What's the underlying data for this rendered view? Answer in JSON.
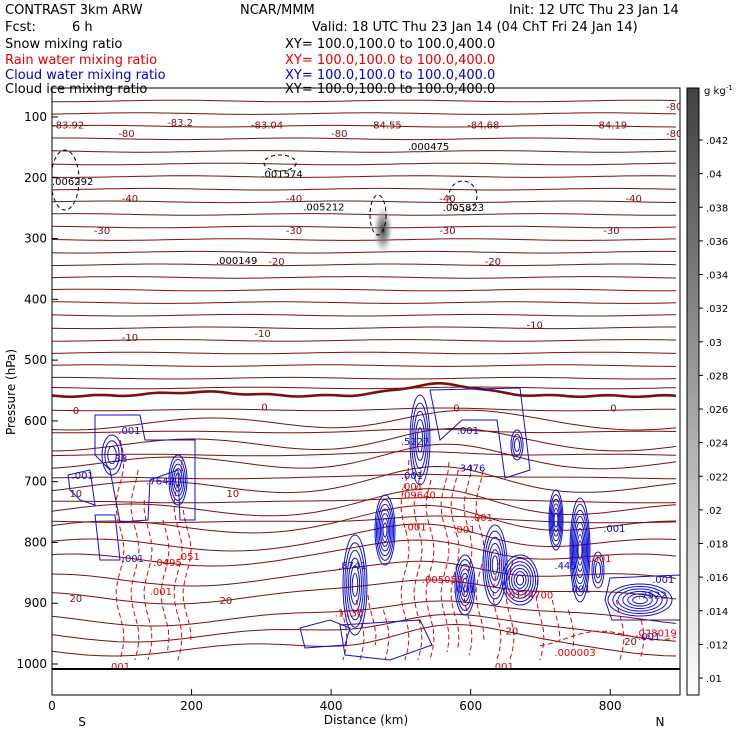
{
  "header": {
    "model": "CONTRAST  3km ARW",
    "org": "NCAR/MMM",
    "init": "Init: 12 UTC Thu 23 Jan 14",
    "fcst_label": "Fcst:",
    "fcst_value": "6 h",
    "valid": "Valid: 18 UTC Thu 23 Jan 14  (04 ChT Fri 24 Jan 14)"
  },
  "legend": [
    {
      "name": "Snow mixing ratio",
      "xy": "XY=  100.0,100.0 to 100.0,400.0",
      "color": "#000000"
    },
    {
      "name": "Rain water mixing ratio",
      "xy": "XY=  100.0,100.0 to 100.0,400.0",
      "color": "#e00000"
    },
    {
      "name": "Cloud water mixing ratio",
      "xy": "XY=  100.0,100.0 to 100.0,400.0",
      "color": "#0000cc"
    },
    {
      "name": "Cloud ice mixing ratio",
      "xy": "XY=  100.0,100.0 to 100.0,400.0",
      "color": "#000000"
    }
  ],
  "colors": {
    "temperature": "#7a1010",
    "rain": "#e00000",
    "cloud_water": "#1010d0",
    "snow": "#000000"
  },
  "chart_data": {
    "type": "contour",
    "xlabel": "Distance (km)",
    "ylabel": "Pressure (hPa)",
    "x_ticks": [
      0,
      200,
      400,
      600,
      800
    ],
    "x_end_labels": {
      "left": "S",
      "right": "N"
    },
    "xlim": [
      0,
      900
    ],
    "y_ticks": [
      100,
      200,
      300,
      400,
      500,
      600,
      700,
      800,
      900,
      1000
    ],
    "ylim": [
      1050,
      50
    ],
    "colorbar": {
      "unit": "g kg",
      "unit_exp": "-1",
      "ticks": [
        ".042",
        ".04",
        ".038",
        ".036",
        ".034",
        ".032",
        ".03",
        ".028",
        ".026",
        ".024",
        ".022",
        ".02",
        ".018",
        ".016",
        ".014",
        ".012",
        ".01"
      ]
    },
    "temperature_labels": [
      {
        "text": "-83.92",
        "x": 0,
        "p": 112
      },
      {
        "text": "-83.2",
        "x": 165,
        "p": 108
      },
      {
        "text": "-83.04",
        "x": 285,
        "p": 112
      },
      {
        "text": "-84.55",
        "x": 455,
        "p": 112
      },
      {
        "text": "-84.68",
        "x": 595,
        "p": 112
      },
      {
        "text": "-84.19",
        "x": 778,
        "p": 112
      },
      {
        "text": "-80",
        "x": 95,
        "p": 126
      },
      {
        "text": "-80",
        "x": 400,
        "p": 126
      },
      {
        "text": "-80",
        "x": 880,
        "p": 82
      },
      {
        "text": "-80",
        "x": 880,
        "p": 126
      },
      {
        "text": "-40",
        "x": 100,
        "p": 233
      },
      {
        "text": "-40",
        "x": 335,
        "p": 233
      },
      {
        "text": "-40",
        "x": 555,
        "p": 233
      },
      {
        "text": "-40",
        "x": 822,
        "p": 233
      },
      {
        "text": "-30",
        "x": 60,
        "p": 286
      },
      {
        "text": "-30",
        "x": 335,
        "p": 286
      },
      {
        "text": "-30",
        "x": 555,
        "p": 286
      },
      {
        "text": "-30",
        "x": 790,
        "p": 286
      },
      {
        "text": "-20",
        "x": 310,
        "p": 337
      },
      {
        "text": "-20",
        "x": 620,
        "p": 337
      },
      {
        "text": "-10",
        "x": 100,
        "p": 462
      },
      {
        "text": "-10",
        "x": 290,
        "p": 455
      },
      {
        "text": "-10",
        "x": 680,
        "p": 441
      },
      {
        "text": "0",
        "x": 30,
        "p": 582
      },
      {
        "text": "0",
        "x": 300,
        "p": 576
      },
      {
        "text": "0",
        "x": 575,
        "p": 578
      },
      {
        "text": "0",
        "x": 800,
        "p": 578
      },
      {
        "text": "10",
        "x": 25,
        "p": 719
      },
      {
        "text": "10",
        "x": 250,
        "p": 719
      },
      {
        "text": "20",
        "x": 25,
        "p": 891
      },
      {
        "text": "20",
        "x": 240,
        "p": 895
      },
      {
        "text": "20",
        "x": 650,
        "p": 945
      },
      {
        "text": "20",
        "x": 820,
        "p": 962
      }
    ],
    "ice_maxima": [
      {
        "text": ".006292",
        "x": 0,
        "p": 205
      },
      {
        "text": ".001574",
        "x": 300,
        "p": 193
      },
      {
        "text": ".000475",
        "x": 510,
        "p": 148
      },
      {
        "text": ".005823",
        "x": 560,
        "p": 248
      },
      {
        "text": ".005212",
        "x": 360,
        "p": 247
      },
      {
        "text": ".000149",
        "x": 235,
        "p": 335
      }
    ],
    "cloud_water_labels": [
      {
        "text": ".001",
        "x": 95,
        "p": 615
      },
      {
        "text": ".38",
        "x": 85,
        "p": 661
      },
      {
        "text": ".001",
        "x": 28,
        "p": 689
      },
      {
        "text": ".7642",
        "x": 135,
        "p": 698
      },
      {
        "text": ".001",
        "x": 100,
        "p": 826
      },
      {
        "text": ".5227",
        "x": 500,
        "p": 633
      },
      {
        "text": ".001",
        "x": 580,
        "p": 615
      },
      {
        "text": ".3476",
        "x": 580,
        "p": 677
      },
      {
        "text": ".001",
        "x": 500,
        "p": 689
      },
      {
        "text": ".8741",
        "x": 410,
        "p": 837
      },
      {
        "text": ".001",
        "x": 575,
        "p": 876
      },
      {
        "text": ".001",
        "x": 740,
        "p": 876
      },
      {
        "text": ".001",
        "x": 790,
        "p": 776
      },
      {
        "text": ".445",
        "x": 720,
        "p": 837
      },
      {
        "text": ".7522",
        "x": 840,
        "p": 886
      },
      {
        "text": ".001",
        "x": 860,
        "p": 860
      },
      {
        "text": ".001",
        "x": 840,
        "p": 954
      }
    ],
    "rain_labels": [
      {
        "text": ".0495",
        "x": 145,
        "p": 832
      },
      {
        "text": ".051",
        "x": 180,
        "p": 822
      },
      {
        "text": ".001",
        "x": 140,
        "p": 880
      },
      {
        "text": ".001",
        "x": 80,
        "p": 1003
      },
      {
        "text": ".001",
        "x": 500,
        "p": 707
      },
      {
        "text": ".09640",
        "x": 500,
        "p": 721
      },
      {
        "text": ".001",
        "x": 575,
        "p": 778
      },
      {
        "text": ".001",
        "x": 600,
        "p": 758
      },
      {
        "text": ".001",
        "x": 505,
        "p": 774
      },
      {
        "text": ".005053",
        "x": 530,
        "p": 860
      },
      {
        "text": ".1130",
        "x": 405,
        "p": 915
      },
      {
        "text": ".0174700",
        "x": 650,
        "p": 886
      },
      {
        "text": ".028019",
        "x": 836,
        "p": 948
      },
      {
        "text": ".000003",
        "x": 720,
        "p": 980
      },
      {
        "text": ".001",
        "x": 630,
        "p": 1003
      },
      {
        "text": ".001",
        "x": 770,
        "p": 826
      }
    ]
  }
}
